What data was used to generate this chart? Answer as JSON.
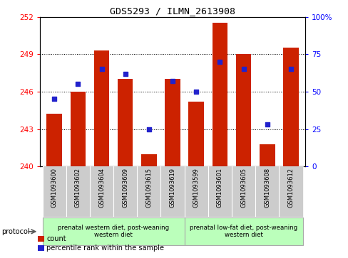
{
  "title": "GDS5293 / ILMN_2613908",
  "samples": [
    "GSM1093600",
    "GSM1093602",
    "GSM1093604",
    "GSM1093609",
    "GSM1093615",
    "GSM1093619",
    "GSM1093599",
    "GSM1093601",
    "GSM1093605",
    "GSM1093608",
    "GSM1093612"
  ],
  "counts": [
    244.2,
    246.0,
    249.3,
    247.0,
    241.0,
    247.0,
    245.2,
    251.5,
    249.0,
    241.8,
    249.5
  ],
  "percentiles": [
    45,
    55,
    65,
    62,
    25,
    57,
    50,
    70,
    65,
    28,
    65
  ],
  "y_min": 240,
  "y_max": 252,
  "y_ticks_left": [
    240,
    243,
    246,
    249,
    252
  ],
  "y_ticks_right": [
    0,
    25,
    50,
    75,
    100
  ],
  "bar_color": "#cc2200",
  "dot_color": "#2222cc",
  "group1_label": "prenatal western diet, post-weaning\nwestern diet",
  "group2_label": "prenatal low-fat diet, post-weaning\nwestern diet",
  "group1_count": 6,
  "group2_count": 5,
  "protocol_label": "protocol",
  "legend_count": "count",
  "legend_percentile": "percentile rank within the sample",
  "background_color": "#ffffff",
  "plot_bg": "#ffffff",
  "group1_bg": "#bbffbb",
  "group2_bg": "#bbffbb",
  "sample_label_bg": "#cccccc"
}
